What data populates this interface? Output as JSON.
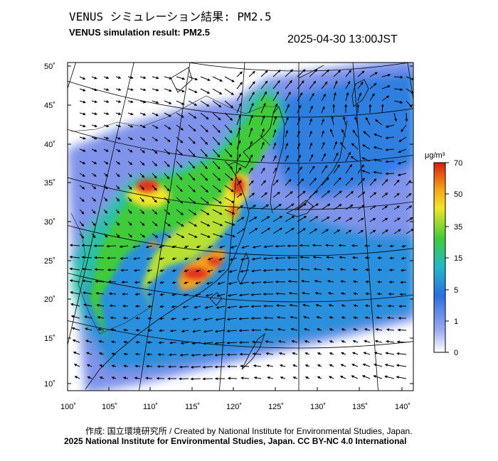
{
  "header": {
    "title_jp": "VENUS シミュレーション結果: PM2.5",
    "title_en": "VENUS simulation result: PM2.5",
    "timestamp": "2025-04-30 13:00JST"
  },
  "map": {
    "lat_ticks": [
      "50˚",
      "45˚",
      "40˚",
      "35˚",
      "30˚",
      "25˚",
      "20˚",
      "15˚",
      "10˚"
    ],
    "lon_ticks": [
      "100˚",
      "105˚",
      "110˚",
      "115˚",
      "120˚",
      "125˚",
      "130˚",
      "135˚",
      "140˚"
    ],
    "lat_range": [
      9,
      51
    ],
    "lon_range": [
      100,
      141
    ]
  },
  "colorbar": {
    "unit": "μg/m³",
    "ticks": [
      "70",
      "50",
      "35",
      "15",
      "5",
      "1",
      "0"
    ],
    "colors": [
      "#d91c12",
      "#f5a31a",
      "#f0e62a",
      "#3fcb3a",
      "#23b8c8",
      "#2b6fe0",
      "#9aa8f0",
      "#ffffff"
    ]
  },
  "footer": {
    "credit_jp_en": "作成: 国立環境研究所 / Created by National Institute for Environmental Studies, Japan.",
    "license": "2025 National Institute for Environmental Studies, Japan. CC BY-NC 4.0 International"
  }
}
